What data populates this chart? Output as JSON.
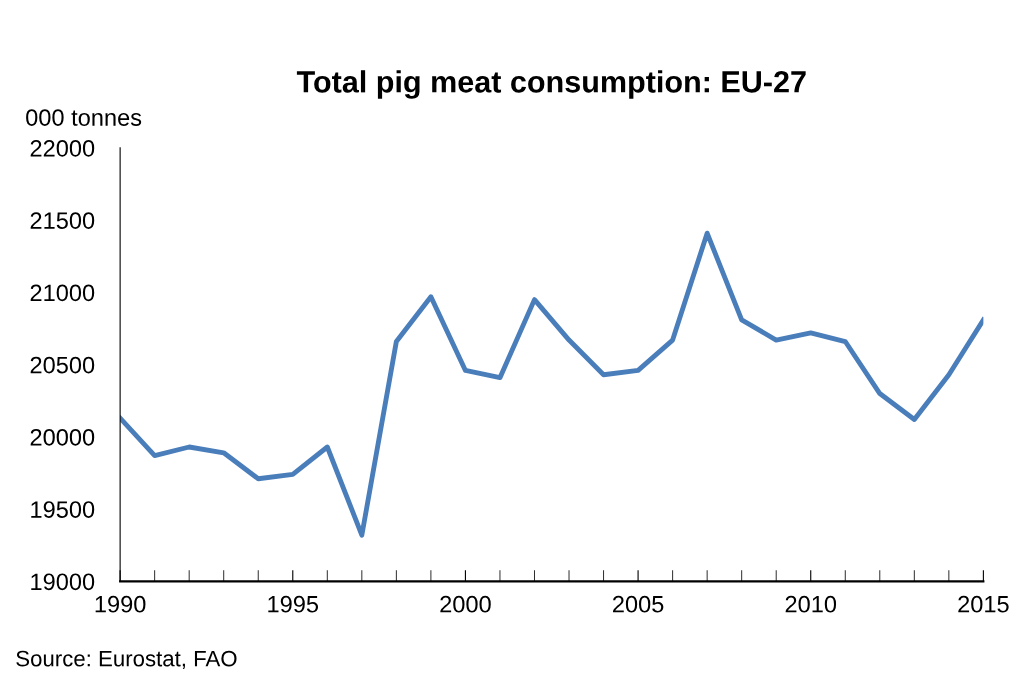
{
  "chart_data": {
    "type": "line",
    "title": "Total pig meat consumption: EU-27",
    "ylabel": "000 tonnes",
    "x": [
      1990,
      1991,
      1992,
      1993,
      1994,
      1995,
      1996,
      1997,
      1998,
      1999,
      2000,
      2001,
      2002,
      2003,
      2004,
      2005,
      2006,
      2007,
      2008,
      2009,
      2010,
      2011,
      2012,
      2013,
      2014,
      2015
    ],
    "series": [
      {
        "color": "#4a7ebb",
        "values": [
          20130,
          19870,
          19930,
          19890,
          19710,
          19740,
          19930,
          19320,
          20660,
          20970,
          20460,
          20410,
          20950,
          20670,
          20430,
          20460,
          20670,
          21410,
          20810,
          20670,
          20720,
          20660,
          20300,
          20120,
          20430,
          20810
        ]
      }
    ],
    "xlim": [
      1990,
      2015
    ],
    "xticks": [
      1990,
      1995,
      2000,
      2005,
      2010,
      2015
    ],
    "ylim": [
      19000,
      22000
    ],
    "yticks": [
      19000,
      19500,
      20000,
      20500,
      21000,
      21500,
      22000
    ],
    "grid": false,
    "legend": false,
    "marker": "none",
    "line_style": "solid",
    "annotations": [
      "Source: Eurostat, FAO"
    ]
  }
}
